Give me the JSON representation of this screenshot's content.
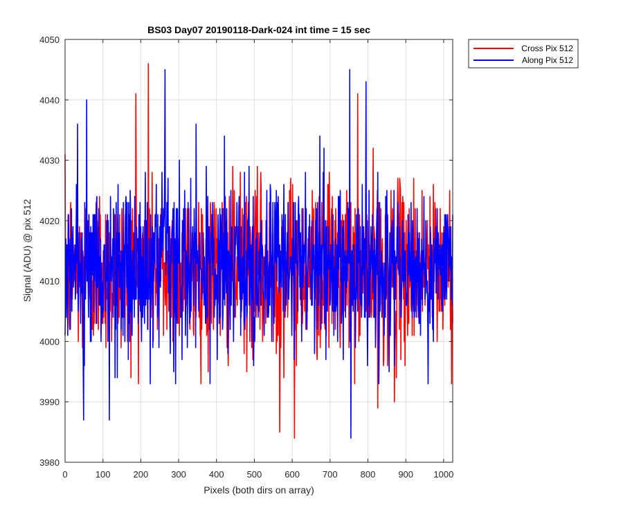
{
  "chart_data": {
    "type": "line",
    "title": "BS03 Day07 20190118-Dark-024 int time = 15 sec",
    "xlabel": "Pixels (both dirs on array)",
    "ylabel": "Signal (ADU) @ pix 512",
    "xlim": [
      0,
      1024
    ],
    "ylim": [
      3980,
      4050
    ],
    "xticks": [
      0,
      100,
      200,
      300,
      400,
      500,
      600,
      700,
      800,
      900,
      1000
    ],
    "yticks": [
      3980,
      3990,
      4000,
      4010,
      4020,
      4030,
      4040,
      4050
    ],
    "grid": true,
    "legend": "outside top-right",
    "series": [
      {
        "name": "Cross Pix 512",
        "color": "#ff0000",
        "notable_points": [
          [
            187,
            4041
          ],
          [
            220,
            4046
          ],
          [
            567,
            3985
          ],
          [
            606,
            3984
          ],
          [
            773,
            4041
          ],
          [
            826,
            3989
          ],
          [
            870,
            3990
          ]
        ],
        "mean": 4012,
        "spread": 7
      },
      {
        "name": "Along Pix 512",
        "color": "#0000ff",
        "notable_points": [
          [
            49,
            3987
          ],
          [
            57,
            4040
          ],
          [
            117,
            3987
          ],
          [
            264,
            4045
          ],
          [
            752,
            4045
          ],
          [
            755,
            3984
          ],
          [
            795,
            4043
          ]
        ],
        "mean": 4012,
        "spread": 7
      }
    ]
  }
}
